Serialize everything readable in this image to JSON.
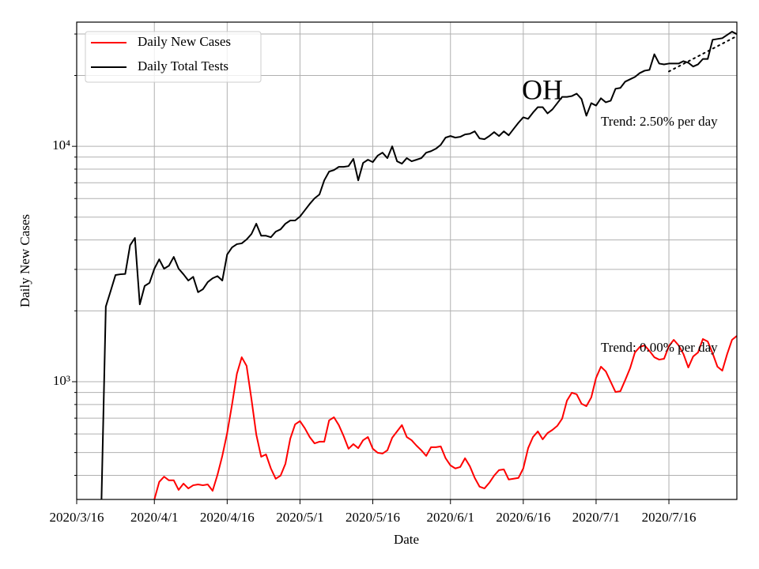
{
  "chart_data": {
    "type": "line",
    "xlabel": "Date",
    "ylabel": "Daily New Cases",
    "annotations": [
      "OH",
      "Trend: 2.50% per day",
      "Trend: 0.00% per day"
    ],
    "ylog": true,
    "grid": true,
    "legend": "upper left",
    "xlim": [
      "2020-03-16",
      "2020-07-30"
    ],
    "xticks": [
      {
        "value": "2020-03-16",
        "label": "2020/3/16"
      },
      {
        "value": "2020-04-01",
        "label": "2020/4/1"
      },
      {
        "value": "2020-04-16",
        "label": "2020/4/16"
      },
      {
        "value": "2020-05-01",
        "label": "2020/5/1"
      },
      {
        "value": "2020-05-16",
        "label": "2020/5/16"
      },
      {
        "value": "2020-06-01",
        "label": "2020/6/1"
      },
      {
        "value": "2020-06-16",
        "label": "2020/6/16"
      },
      {
        "value": "2020-07-01",
        "label": "2020/7/1"
      },
      {
        "value": "2020-07-16",
        "label": "2020/7/16"
      }
    ],
    "ylim": [
      316,
      33700
    ],
    "yticks": [
      {
        "value": 1000,
        "label": "10³"
      },
      {
        "value": 10000,
        "label": "10⁴"
      }
    ],
    "yminorticks": [
      400,
      500,
      600,
      700,
      800,
      900,
      2000,
      3000,
      4000,
      5000,
      6000,
      7000,
      8000,
      9000,
      20000,
      30000
    ],
    "series": [
      {
        "name": "Daily New Cases",
        "color": "#ff0000",
        "x": [
          "2020-04-01",
          "2020-04-02",
          "2020-04-03",
          "2020-04-04",
          "2020-04-05",
          "2020-04-06",
          "2020-04-07",
          "2020-04-08",
          "2020-04-09",
          "2020-04-10",
          "2020-04-11",
          "2020-04-12",
          "2020-04-13",
          "2020-04-14",
          "2020-04-15",
          "2020-04-16",
          "2020-04-17",
          "2020-04-18",
          "2020-04-19",
          "2020-04-20",
          "2020-04-21",
          "2020-04-22",
          "2020-04-23",
          "2020-04-24",
          "2020-04-25",
          "2020-04-26",
          "2020-04-27",
          "2020-04-28",
          "2020-04-29",
          "2020-04-30",
          "2020-05-01",
          "2020-05-02",
          "2020-05-03",
          "2020-05-04",
          "2020-05-05",
          "2020-05-06",
          "2020-05-07",
          "2020-05-08",
          "2020-05-09",
          "2020-05-10",
          "2020-05-11",
          "2020-05-12",
          "2020-05-13",
          "2020-05-14",
          "2020-05-15",
          "2020-05-16",
          "2020-05-17",
          "2020-05-18",
          "2020-05-19",
          "2020-05-20",
          "2020-05-21",
          "2020-05-22",
          "2020-05-23",
          "2020-05-24",
          "2020-05-25",
          "2020-05-26",
          "2020-05-27",
          "2020-05-28",
          "2020-05-29",
          "2020-05-30",
          "2020-05-31",
          "2020-06-01",
          "2020-06-02",
          "2020-06-03",
          "2020-06-04",
          "2020-06-05",
          "2020-06-06",
          "2020-06-07",
          "2020-06-08",
          "2020-06-09",
          "2020-06-10",
          "2020-06-11",
          "2020-06-12",
          "2020-06-13",
          "2020-06-14",
          "2020-06-15",
          "2020-06-16",
          "2020-06-17",
          "2020-06-18",
          "2020-06-19",
          "2020-06-20",
          "2020-06-21",
          "2020-06-22",
          "2020-06-23",
          "2020-06-24",
          "2020-06-25",
          "2020-06-26",
          "2020-06-27",
          "2020-06-28",
          "2020-06-29",
          "2020-06-30",
          "2020-07-01",
          "2020-07-02",
          "2020-07-03",
          "2020-07-04",
          "2020-07-05",
          "2020-07-06",
          "2020-07-07",
          "2020-07-08",
          "2020-07-09",
          "2020-07-10",
          "2020-07-11",
          "2020-07-12",
          "2020-07-13",
          "2020-07-14",
          "2020-07-15",
          "2020-07-16",
          "2020-07-17",
          "2020-07-18",
          "2020-07-19",
          "2020-07-20",
          "2020-07-21",
          "2020-07-22",
          "2020-07-23",
          "2020-07-24",
          "2020-07-25",
          "2020-07-26",
          "2020-07-27",
          "2020-07-28",
          "2020-07-29",
          "2020-07-30"
        ],
        "values": [
          316,
          375,
          395,
          381,
          381,
          347,
          369,
          352,
          363,
          366,
          363,
          366,
          344,
          402,
          484,
          605,
          799,
          1080,
          1270,
          1167,
          844,
          596,
          480,
          491,
          428,
          387,
          399,
          448,
          573,
          659,
          680,
          634,
          582,
          547,
          556,
          556,
          685,
          706,
          654,
          587,
          519,
          543,
          522,
          564,
          582,
          519,
          499,
          495,
          511,
          578,
          615,
          654,
          582,
          564,
          535,
          511,
          484,
          527,
          527,
          531,
          473,
          441,
          428,
          434,
          473,
          437,
          390,
          358,
          352,
          372,
          399,
          421,
          424,
          384,
          387,
          390,
          428,
          522,
          582,
          615,
          569,
          605,
          624,
          649,
          696,
          831,
          898,
          884,
          806,
          787,
          857,
          1039,
          1158,
          1106,
          1000,
          904,
          911,
          1016,
          1140,
          1331,
          1405,
          1427,
          1352,
          1270,
          1241,
          1251,
          1416,
          1506,
          1427,
          1310,
          1149,
          1280,
          1331,
          1518,
          1482,
          1321,
          1158,
          1114,
          1310,
          1506,
          1565
        ]
      },
      {
        "name": "Daily Total Tests",
        "color": "#000000",
        "x": [
          "2020-03-21",
          "2020-03-22",
          "2020-03-23",
          "2020-03-24",
          "2020-03-25",
          "2020-03-26",
          "2020-03-27",
          "2020-03-28",
          "2020-03-29",
          "2020-03-30",
          "2020-03-31",
          "2020-04-01",
          "2020-04-02",
          "2020-04-03",
          "2020-04-04",
          "2020-04-05",
          "2020-04-06",
          "2020-04-07",
          "2020-04-08",
          "2020-04-09",
          "2020-04-10",
          "2020-04-11",
          "2020-04-12",
          "2020-04-13",
          "2020-04-14",
          "2020-04-15",
          "2020-04-16",
          "2020-04-17",
          "2020-04-18",
          "2020-04-19",
          "2020-04-20",
          "2020-04-21",
          "2020-04-22",
          "2020-04-23",
          "2020-04-24",
          "2020-04-25",
          "2020-04-26",
          "2020-04-27",
          "2020-04-28",
          "2020-04-29",
          "2020-04-30",
          "2020-05-01",
          "2020-05-02",
          "2020-05-03",
          "2020-05-04",
          "2020-05-05",
          "2020-05-06",
          "2020-05-07",
          "2020-05-08",
          "2020-05-09",
          "2020-05-10",
          "2020-05-11",
          "2020-05-12",
          "2020-05-13",
          "2020-05-14",
          "2020-05-15",
          "2020-05-16",
          "2020-05-17",
          "2020-05-18",
          "2020-05-19",
          "2020-05-20",
          "2020-05-21",
          "2020-05-22",
          "2020-05-23",
          "2020-05-24",
          "2020-05-25",
          "2020-05-26",
          "2020-05-27",
          "2020-05-28",
          "2020-05-29",
          "2020-05-30",
          "2020-05-31",
          "2020-06-01",
          "2020-06-02",
          "2020-06-03",
          "2020-06-04",
          "2020-06-05",
          "2020-06-06",
          "2020-06-07",
          "2020-06-08",
          "2020-06-09",
          "2020-06-10",
          "2020-06-11",
          "2020-06-12",
          "2020-06-13",
          "2020-06-14",
          "2020-06-15",
          "2020-06-16",
          "2020-06-17",
          "2020-06-18",
          "2020-06-19",
          "2020-06-20",
          "2020-06-21",
          "2020-06-22",
          "2020-06-23",
          "2020-06-24",
          "2020-06-25",
          "2020-06-26",
          "2020-06-27",
          "2020-06-28",
          "2020-06-29",
          "2020-06-30",
          "2020-07-01",
          "2020-07-02",
          "2020-07-03",
          "2020-07-04",
          "2020-07-05",
          "2020-07-06",
          "2020-07-07",
          "2020-07-08",
          "2020-07-09",
          "2020-07-10",
          "2020-07-11",
          "2020-07-12",
          "2020-07-13",
          "2020-07-14",
          "2020-07-15",
          "2020-07-16",
          "2020-07-17",
          "2020-07-18",
          "2020-07-19",
          "2020-07-20",
          "2020-07-21",
          "2020-07-22",
          "2020-07-23",
          "2020-07-24",
          "2020-07-25",
          "2020-07-26",
          "2020-07-27",
          "2020-07-28",
          "2020-07-29",
          "2020-07-30"
        ],
        "values": [
          250,
          2085,
          2430,
          2840,
          2860,
          2870,
          3800,
          4080,
          2130,
          2550,
          2630,
          3020,
          3310,
          3020,
          3110,
          3390,
          3020,
          2860,
          2690,
          2790,
          2400,
          2470,
          2650,
          2750,
          2810,
          2690,
          3470,
          3720,
          3840,
          3870,
          4020,
          4240,
          4690,
          4170,
          4170,
          4110,
          4340,
          4440,
          4690,
          4840,
          4840,
          5030,
          5350,
          5690,
          6010,
          6240,
          7170,
          7810,
          7930,
          8180,
          8180,
          8240,
          8840,
          7170,
          8500,
          8770,
          8570,
          9130,
          9400,
          8910,
          10000,
          8640,
          8440,
          8910,
          8640,
          8770,
          8910,
          9400,
          9540,
          9770,
          10150,
          10890,
          11060,
          10890,
          10970,
          11230,
          11310,
          11580,
          10800,
          10720,
          11060,
          11490,
          11060,
          11580,
          11140,
          11850,
          12590,
          13280,
          13080,
          13910,
          14670,
          14670,
          13800,
          14350,
          15250,
          16220,
          16220,
          16350,
          16740,
          15880,
          13490,
          15250,
          14900,
          16000,
          15380,
          15620,
          17560,
          17700,
          18830,
          19270,
          19710,
          20480,
          20960,
          21130,
          24600,
          22470,
          22290,
          22470,
          22470,
          22470,
          23000,
          22650,
          21820,
          22290,
          23500,
          23500,
          28360,
          28580,
          28800,
          29730,
          30700,
          29960
        ]
      }
    ],
    "trend_lines": [
      {
        "color": "#000000",
        "style": "dotted",
        "x": [
          "2020-07-16",
          "2020-07-30"
        ],
        "values": [
          20800,
          29400
        ]
      }
    ]
  }
}
